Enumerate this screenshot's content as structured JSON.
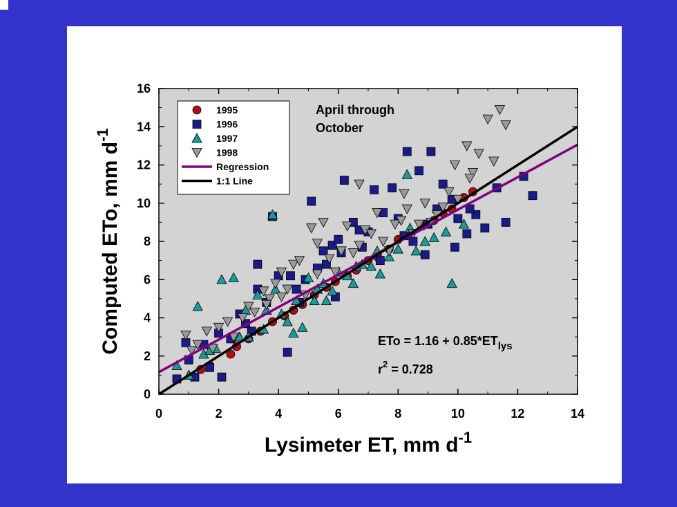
{
  "chart_data": {
    "type": "scatter",
    "annotation": [
      "April through",
      "October"
    ],
    "equation_main": "ETo = 1.16 + 0.85*ET",
    "equation_sub": "lys",
    "r2_base": "r",
    "r2_sup": "2",
    "r2_value": " = 0.728",
    "xlabel_main": "Lysimeter ET, mm d",
    "xlabel_sup": "-1",
    "ylabel_main": "Computed ETo, mm d",
    "ylabel_sup": "-1",
    "xlim": [
      0,
      14
    ],
    "ylim": [
      0,
      16
    ],
    "xticks": [
      "0",
      "2",
      "4",
      "6",
      "8",
      "10",
      "12",
      "14"
    ],
    "yticks": [
      "0",
      "2",
      "4",
      "6",
      "8",
      "10",
      "12",
      "14",
      "16"
    ],
    "grid": false,
    "legend_position": "top-left",
    "legend": [
      {
        "label": "1995",
        "marker": "circle"
      },
      {
        "label": "1996",
        "marker": "square"
      },
      {
        "label": "1997",
        "marker": "triangle-up"
      },
      {
        "label": "1998",
        "marker": "triangle-down"
      },
      {
        "label": "Regression",
        "marker": "line"
      },
      {
        "label": "1:1 Line",
        "marker": "line"
      }
    ],
    "lines": [
      {
        "label": "Regression",
        "color": "#800080",
        "intercept": 1.16,
        "slope": 0.85
      },
      {
        "label": "1:1 Line",
        "color": "#000000",
        "intercept": 0,
        "slope": 1
      }
    ],
    "series": [
      {
        "label": "1995",
        "marker": "circle",
        "color": "#aa1111",
        "x": [
          1.4,
          1.7,
          2.4,
          2.6,
          3.0,
          3.4,
          3.8,
          4.2,
          4.5,
          4.8,
          5.2,
          5.6,
          5.9,
          6.3,
          6.6,
          7.0,
          7.3,
          7.7,
          8.0,
          8.4,
          8.8,
          9.2,
          9.5,
          9.8,
          10.2,
          10.5
        ],
        "y": [
          1.3,
          1.5,
          2.1,
          2.5,
          2.9,
          3.3,
          3.8,
          4.1,
          4.4,
          4.7,
          5.2,
          5.6,
          5.9,
          6.2,
          6.5,
          7.0,
          7.2,
          7.6,
          8.1,
          8.4,
          8.8,
          9.1,
          9.5,
          9.7,
          10.3,
          10.6
        ]
      },
      {
        "label": "1996",
        "marker": "square",
        "color": "#1a1a88",
        "x": [
          0.6,
          1.0,
          1.2,
          1.5,
          2.0,
          2.1,
          2.4,
          2.7,
          3.1,
          3.3,
          3.6,
          3.8,
          4.0,
          4.3,
          4.6,
          4.9,
          5.1,
          5.3,
          5.5,
          5.8,
          6.0,
          6.2,
          6.5,
          6.7,
          7.0,
          7.2,
          7.5,
          7.8,
          8.0,
          8.3,
          8.5,
          8.7,
          9.0,
          9.1,
          9.3,
          9.5,
          9.8,
          10.0,
          10.3,
          10.6,
          10.9,
          11.3,
          11.6,
          12.2,
          12.5,
          0.9,
          1.7,
          2.9,
          4.7,
          5.9,
          6.1,
          7.4,
          8.9,
          9.9,
          10.4,
          3.3,
          4.4,
          5.6,
          6.8,
          8.2
        ],
        "y": [
          0.8,
          1.8,
          0.9,
          2.6,
          3.2,
          0.9,
          2.9,
          4.2,
          3.3,
          6.8,
          4.8,
          9.3,
          6.2,
          2.2,
          5.5,
          6.0,
          10.1,
          6.6,
          7.5,
          7.8,
          8.1,
          11.2,
          9.0,
          8.6,
          8.5,
          10.7,
          9.5,
          10.8,
          9.2,
          12.7,
          8.0,
          11.7,
          8.9,
          12.7,
          9.7,
          11.0,
          10.2,
          9.2,
          8.4,
          9.4,
          8.7,
          10.8,
          9.0,
          11.4,
          10.4,
          2.7,
          1.4,
          3.7,
          4.8,
          5.1,
          7.4,
          7.0,
          7.3,
          7.7,
          9.7,
          5.5,
          6.2,
          6.8,
          7.7,
          8.3
        ]
      },
      {
        "label": "1997",
        "marker": "triangle-up",
        "color": "#1a9b9b",
        "x": [
          0.6,
          1.0,
          1.3,
          1.5,
          1.9,
          2.1,
          2.5,
          2.7,
          3.0,
          3.3,
          3.6,
          3.8,
          4.1,
          4.3,
          4.6,
          4.8,
          5.0,
          5.3,
          5.5,
          5.8,
          6.0,
          6.3,
          6.6,
          6.8,
          7.1,
          7.4,
          7.7,
          8.0,
          8.3,
          8.6,
          8.9,
          9.2,
          9.6,
          9.8,
          10.2,
          2.9,
          3.9,
          4.5,
          5.2,
          6.5,
          7.3,
          8.4,
          1.7,
          3.5,
          5.6
        ],
        "y": [
          1.5,
          1.0,
          4.6,
          2.1,
          2.4,
          6.0,
          6.1,
          3.0,
          3.0,
          5.2,
          4.4,
          9.4,
          4.2,
          3.8,
          4.9,
          3.5,
          6.1,
          5.5,
          5.8,
          5.4,
          6.4,
          6.2,
          6.7,
          6.8,
          6.7,
          6.3,
          7.2,
          7.6,
          11.5,
          7.5,
          8.0,
          8.2,
          8.5,
          5.8,
          8.9,
          4.4,
          5.5,
          3.2,
          4.9,
          5.8,
          7.5,
          8.7,
          2.3,
          3.4,
          4.9
        ]
      },
      {
        "label": "1998",
        "marker": "triangle-down",
        "color": "#9a9a9a",
        "x": [
          0.9,
          1.1,
          1.3,
          1.6,
          1.8,
          2.0,
          2.3,
          2.5,
          2.8,
          3.0,
          3.2,
          3.5,
          3.7,
          3.9,
          4.1,
          4.3,
          4.5,
          4.7,
          4.9,
          5.1,
          5.3,
          5.5,
          5.7,
          5.9,
          6.1,
          6.3,
          6.5,
          6.7,
          6.9,
          7.1,
          7.3,
          7.5,
          7.7,
          7.9,
          8.1,
          8.3,
          8.5,
          8.7,
          8.9,
          9.1,
          9.3,
          9.5,
          9.7,
          10.0,
          10.3,
          10.5,
          10.7,
          11.0,
          11.2,
          11.4,
          11.6,
          6.7,
          9.9,
          5.3,
          8.2,
          10.4,
          4.1,
          3.6
        ],
        "y": [
          3.1,
          2.3,
          2.6,
          3.3,
          2.4,
          3.5,
          3.8,
          3.0,
          4.0,
          4.6,
          4.3,
          5.4,
          5.0,
          5.8,
          6.4,
          5.5,
          6.8,
          7.0,
          5.2,
          8.7,
          6.3,
          9.0,
          7.1,
          6.4,
          7.5,
          8.8,
          7.4,
          7.8,
          8.6,
          8.4,
          9.5,
          8.0,
          7.5,
          8.9,
          9.1,
          9.7,
          8.4,
          8.9,
          10.0,
          9.0,
          9.4,
          9.8,
          10.6,
          10.2,
          13.0,
          11.6,
          12.6,
          14.4,
          12.2,
          14.9,
          14.1,
          11.0,
          12.0,
          7.9,
          10.5,
          11.3,
          5.1,
          4.7
        ]
      }
    ]
  }
}
